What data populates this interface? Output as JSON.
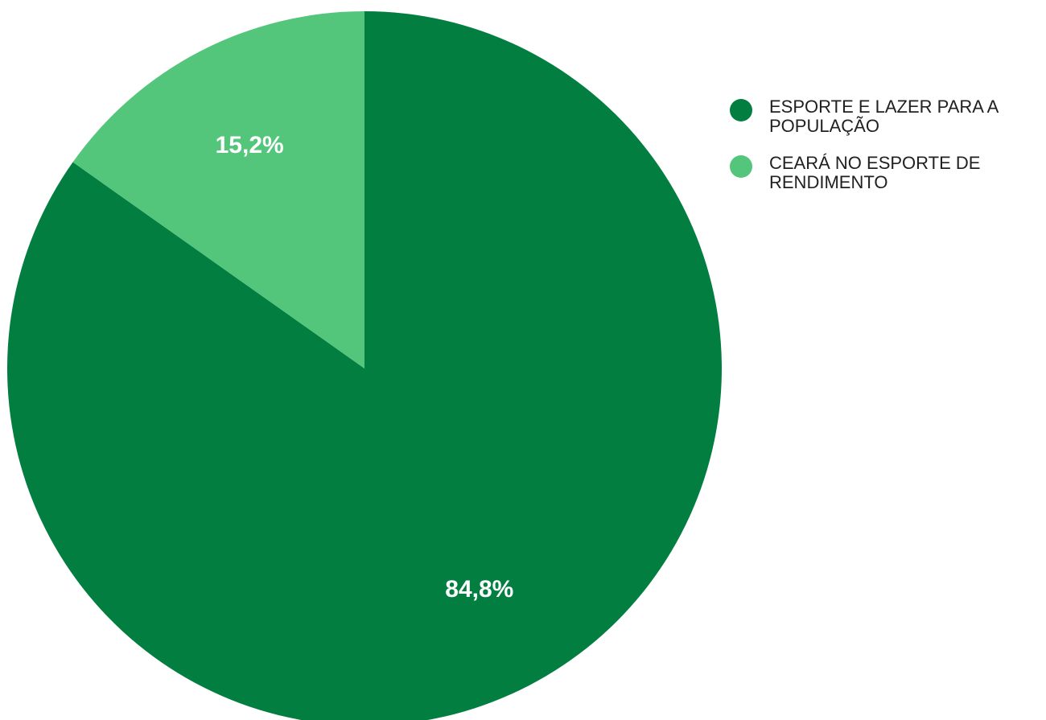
{
  "chart_data": {
    "type": "pie",
    "title": "",
    "legend_position": "right",
    "categories": [
      "ESPORTE E LAZER PARA A POPULAÇÃO",
      "CEARÁ NO ESPORTE DE RENDIMENTO"
    ],
    "values": [
      84.8,
      15.2
    ],
    "data_labels": [
      "84,8%",
      "15,2%"
    ],
    "colors": [
      "#027f40",
      "#53c67b"
    ],
    "label_color": "#ffffff"
  }
}
